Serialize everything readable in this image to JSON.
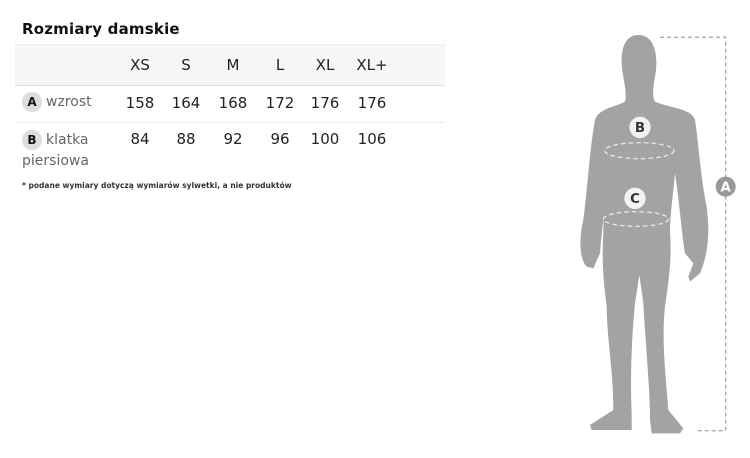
{
  "title": "Rozmiary damskie",
  "table": {
    "sizes": [
      "XS",
      "S",
      "M",
      "L",
      "XL",
      "XL+"
    ],
    "rows": [
      {
        "badge": "A",
        "label": "wzrost",
        "values": [
          "158",
          "164",
          "168",
          "172",
          "176",
          "176"
        ]
      },
      {
        "badge": "B",
        "label": "klatka piersiowa",
        "values": [
          "84",
          "88",
          "92",
          "96",
          "100",
          "106"
        ]
      }
    ]
  },
  "footnote": "* podane wymiary dotyczą wymiarów sylwetki, a nie produktów",
  "figure": {
    "marker_a": "A",
    "marker_b": "B",
    "marker_c": "C"
  },
  "colors": {
    "silhouette": "#a3a3a3",
    "marker_a": "#999999",
    "badge": "#dddddd"
  }
}
